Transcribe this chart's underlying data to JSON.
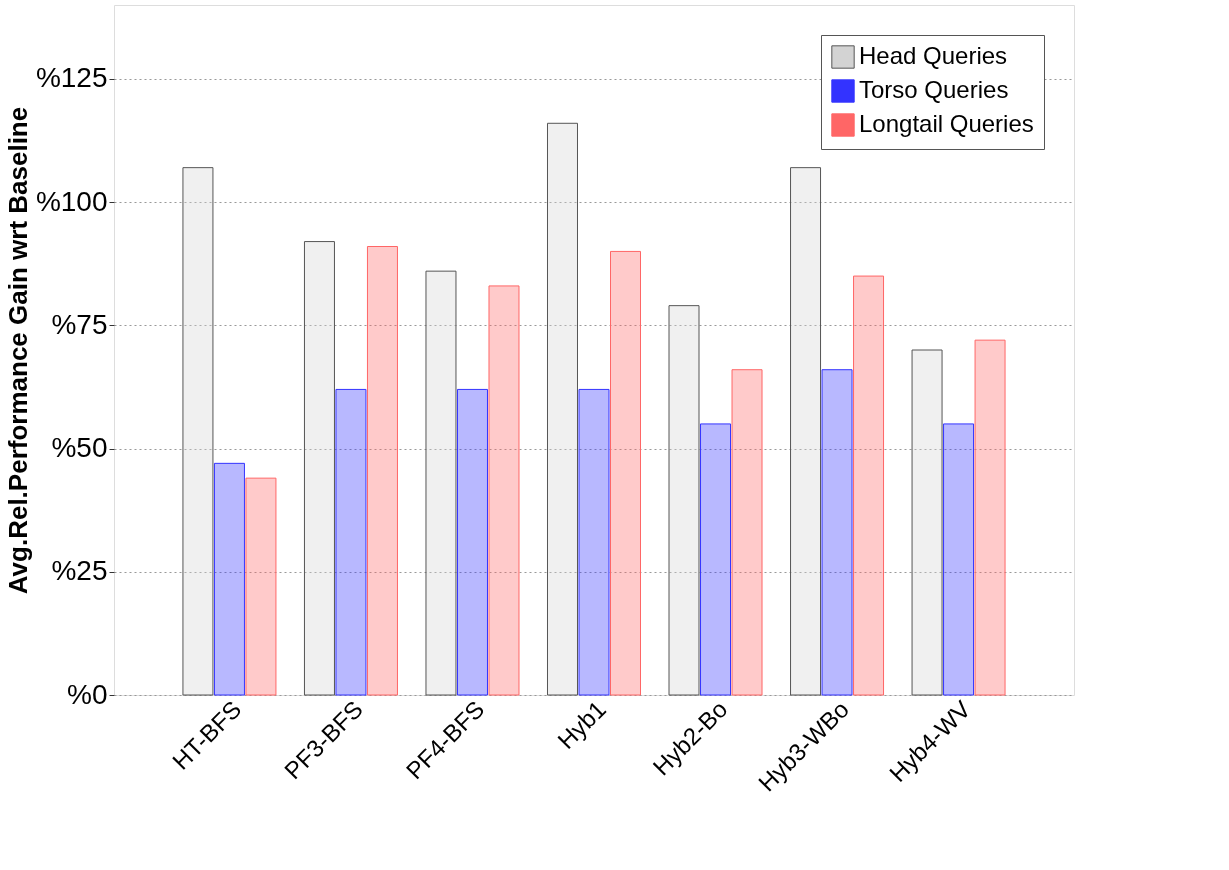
{
  "chart_data": {
    "type": "bar",
    "ylabel": "Avg.Rel.Performance Gain wrt Baseline",
    "categories": [
      "HT-BFS",
      "PF3-BFS",
      "PF4-BFS",
      "Hyb1",
      "Hyb2-Bo",
      "Hyb3-WBo",
      "Hyb4-WV"
    ],
    "series": [
      {
        "name": "Head Queries",
        "color": "#d3d3d3",
        "values": [
          107,
          92,
          86,
          116,
          79,
          107,
          70
        ]
      },
      {
        "name": "Torso Queries",
        "color": "#3333ff",
        "values": [
          47,
          62,
          62,
          62,
          55,
          66,
          55
        ]
      },
      {
        "name": "Longtail Queries",
        "color": "#ff6666",
        "values": [
          44,
          91,
          83,
          90,
          66,
          85,
          72
        ]
      }
    ],
    "ylim": [
      0,
      140
    ],
    "yticks": [
      {
        "value": 0,
        "label": "%0"
      },
      {
        "value": 25,
        "label": "%25"
      },
      {
        "value": 50,
        "label": "%50"
      },
      {
        "value": 75,
        "label": "%75"
      },
      {
        "value": 100,
        "label": "%100"
      },
      {
        "value": 125,
        "label": "%125"
      }
    ],
    "grid": true,
    "legend": "top right"
  }
}
